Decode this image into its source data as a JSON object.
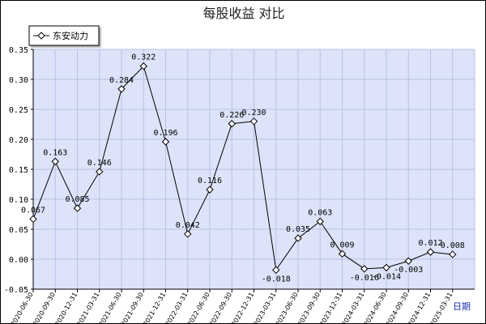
{
  "chart_data": {
    "type": "line",
    "title": "每股收益  对比",
    "xlabel": "",
    "ylabel": "",
    "x_unit_label": "日期",
    "categories": [
      "2020-06-30",
      "2020-09-30",
      "2020-12-31",
      "2021-03-31",
      "2021-06-30",
      "2021-09-30",
      "2021-12-31",
      "2022-03-31",
      "2022-06-30",
      "2022-09-30",
      "2022-12-31",
      "2023-03-31",
      "2023-06-30",
      "2023-09-30",
      "2023-12-31",
      "2024-03-31",
      "2024-06-30",
      "2024-09-30",
      "2024-12-31",
      "2025-03-31"
    ],
    "series": [
      {
        "name": "东安动力",
        "values": [
          0.067,
          0.163,
          0.085,
          0.146,
          0.284,
          0.322,
          0.196,
          0.042,
          0.116,
          0.226,
          0.23,
          -0.018,
          0.035,
          0.063,
          0.009,
          -0.016,
          -0.014,
          -0.003,
          0.012,
          0.008
        ],
        "labels": [
          "0.067",
          "0.163",
          "0.085",
          "0.146",
          "0.284",
          "0.322",
          "0.196",
          "0.042",
          "0.116",
          "0.226",
          "0.230",
          "-0.018",
          "0.035",
          "0.063",
          "0.009",
          "-0.016",
          "-0.014",
          "-0.003",
          "0.012",
          "0.008"
        ]
      }
    ],
    "ylim": [
      -0.05,
      0.35
    ],
    "yticks": [
      "-0.05",
      "0.00",
      "0.05",
      "0.10",
      "0.15",
      "0.20",
      "0.25",
      "0.30",
      "0.35"
    ],
    "grid": true,
    "legend_position": "top-left",
    "colors": {
      "plot_bg": "#dde3f8",
      "grid": "#b8c1e8",
      "line": "#000000",
      "marker_fill": "#ffffff",
      "unit_label": "#1a2fb0"
    }
  }
}
